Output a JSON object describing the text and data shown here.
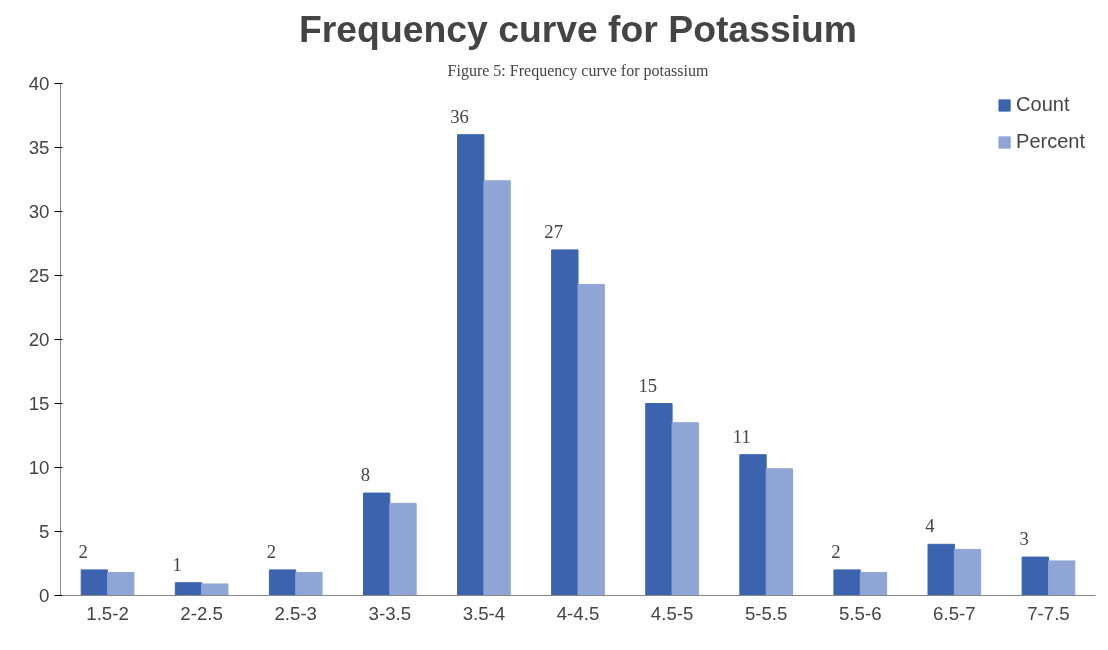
{
  "chart_data": {
    "type": "bar",
    "title": "Frequency curve for Potassium",
    "annotations": [
      "Figure 5: Frequency curve for potassium"
    ],
    "categories": [
      "1.5-2",
      "2-2.5",
      "2.5-3",
      "3-3.5",
      "3.5-4",
      "4-4.5",
      "4.5-5",
      "5-5.5",
      "5.5-6",
      "6.5-7",
      "7-7.5"
    ],
    "series": [
      {
        "name": "Count",
        "color": "#3c64ae",
        "values": [
          2,
          1,
          2,
          8,
          36,
          27,
          15,
          11,
          2,
          4,
          3
        ],
        "value_labels": [
          "2",
          "1",
          "2",
          "8",
          "36",
          "27",
          "15",
          "11",
          "2",
          "4",
          "3"
        ]
      },
      {
        "name": "Percent",
        "color": "#8ea5d6",
        "values": [
          1.8,
          0.9,
          1.8,
          7.2,
          32.4,
          24.3,
          13.5,
          9.9,
          1.8,
          3.6,
          2.7
        ]
      }
    ],
    "ylim": [
      0,
      40
    ],
    "yticks": [
      0,
      5,
      10,
      15,
      20,
      25,
      30,
      35,
      40
    ],
    "grid": false,
    "legend": "top right"
  }
}
